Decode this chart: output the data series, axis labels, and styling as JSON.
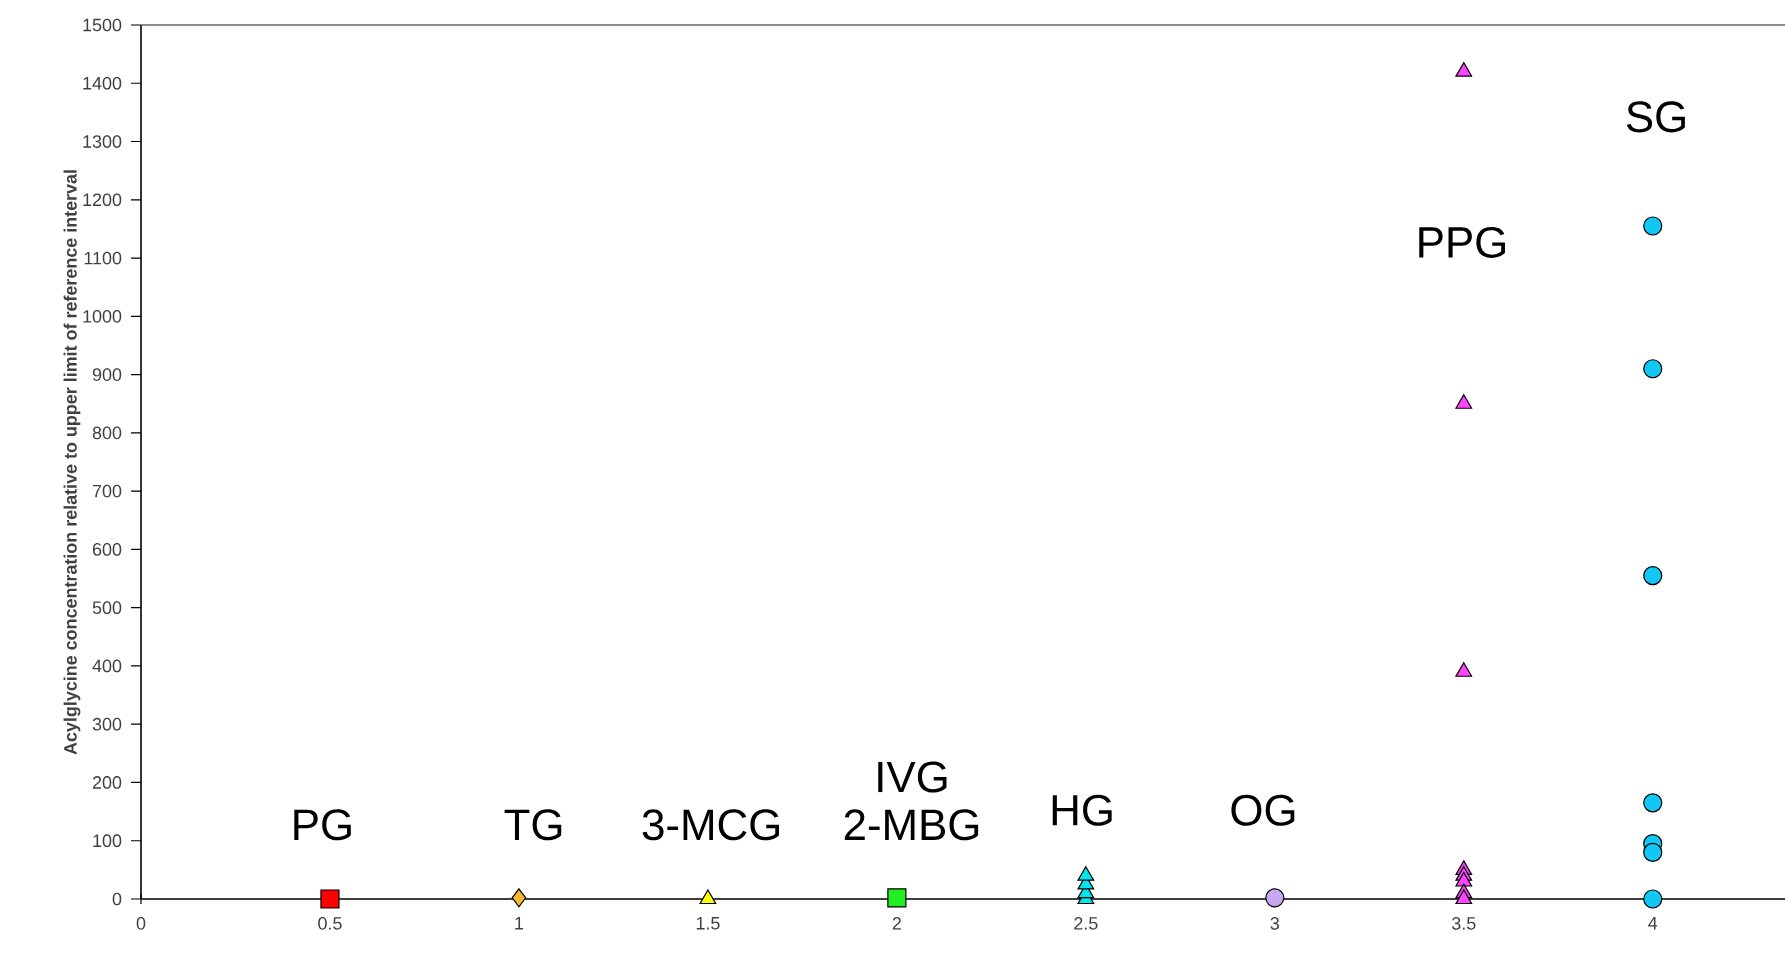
{
  "chart_data": {
    "type": "scatter",
    "ylabel": "Acylglycine concentration relative to upper limit of reference interval",
    "xlim": [
      0,
      4.35
    ],
    "ylim": [
      0,
      1500
    ],
    "xticks": [
      0,
      0.5,
      1,
      1.5,
      2,
      2.5,
      3,
      3.5,
      4
    ],
    "yticks": [
      0,
      100,
      200,
      300,
      400,
      500,
      600,
      700,
      800,
      900,
      1000,
      1100,
      1200,
      1300,
      1400,
      1500
    ],
    "grid": false,
    "series": [
      {
        "name": "PG",
        "x": [
          0.5
        ],
        "values": [
          0
        ],
        "color": "#ff0000",
        "marker": "square"
      },
      {
        "name": "TG",
        "x": [
          1
        ],
        "values": [
          2
        ],
        "color": "#f5b830",
        "marker": "diamond"
      },
      {
        "name": "3-MCG",
        "x": [
          1.5
        ],
        "values": [
          0
        ],
        "color": "#ffff00",
        "marker": "triangle"
      },
      {
        "name": "IVG 2-MBG",
        "x": [
          2
        ],
        "values": [
          2
        ],
        "color": "#22ee22",
        "marker": "square"
      },
      {
        "name": "HG",
        "x": [
          2.5,
          2.5,
          2.5,
          2.5
        ],
        "values": [
          0,
          10,
          25,
          40
        ],
        "color": "#00e5ee",
        "marker": "triangle"
      },
      {
        "name": "OG",
        "x": [
          3
        ],
        "values": [
          2
        ],
        "color": "#c8a8f0",
        "marker": "circle"
      },
      {
        "x": [
          3.5,
          3.5,
          3.5,
          3.5,
          3.5,
          3.5,
          3.5,
          3.5
        ],
        "values": [
          1420,
          850,
          390,
          50,
          40,
          30,
          10,
          0
        ],
        "color": "#ff44ff",
        "marker": "triangle"
      },
      {
        "name": "SG",
        "x": [
          4,
          4,
          4,
          4,
          4,
          4,
          4
        ],
        "values": [
          1155,
          910,
          555,
          165,
          95,
          80,
          0
        ],
        "color": "#11c8f5",
        "marker": "circle"
      }
    ],
    "annotations": [
      "PPG"
    ]
  }
}
